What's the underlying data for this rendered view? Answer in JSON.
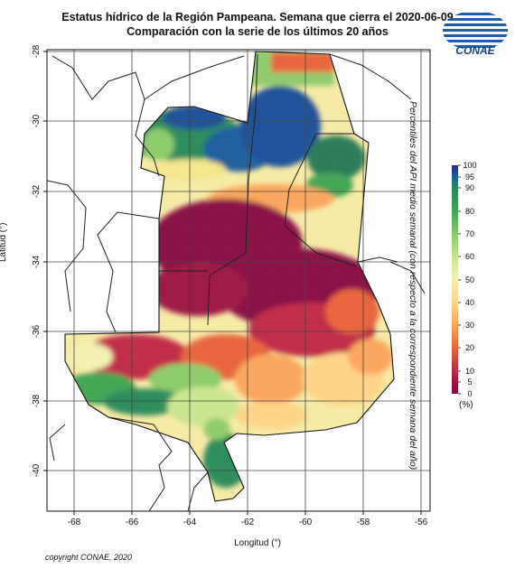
{
  "title_line1": "Estatus hídrico de la Región Pampeana. Semana que cierra el 2020-06-09",
  "title_line2": "Comparación con la serie de los últimos 20 años",
  "logo_text": "CONAE",
  "x_axis": {
    "label": "Longitud (°)",
    "ticks": [
      "-68",
      "-66",
      "-64",
      "-62",
      "-60",
      "-58",
      "-56"
    ]
  },
  "y_axis": {
    "label": "Latitud (°)",
    "ticks": [
      "-28",
      "-30",
      "-32",
      "-34",
      "-36",
      "-38",
      "-40"
    ]
  },
  "legend": {
    "title": "Percentiles del API medio semanal (con respecto a la correspondiente semana del año)",
    "unit": "(%)",
    "ticks": [
      "100",
      "95",
      "90",
      "80",
      "70",
      "60",
      "50",
      "40",
      "30",
      "20",
      "10",
      "5",
      "0"
    ],
    "colors": [
      "#2b2a85",
      "#1b5d9c",
      "#2a8a59",
      "#3fa452",
      "#8ccb6b",
      "#c9e58d",
      "#f3f0b0",
      "#fdd486",
      "#fba55c",
      "#e8643a",
      "#c02944",
      "#8a0b45"
    ]
  },
  "copyright": "copyright CONAE, 2020"
}
